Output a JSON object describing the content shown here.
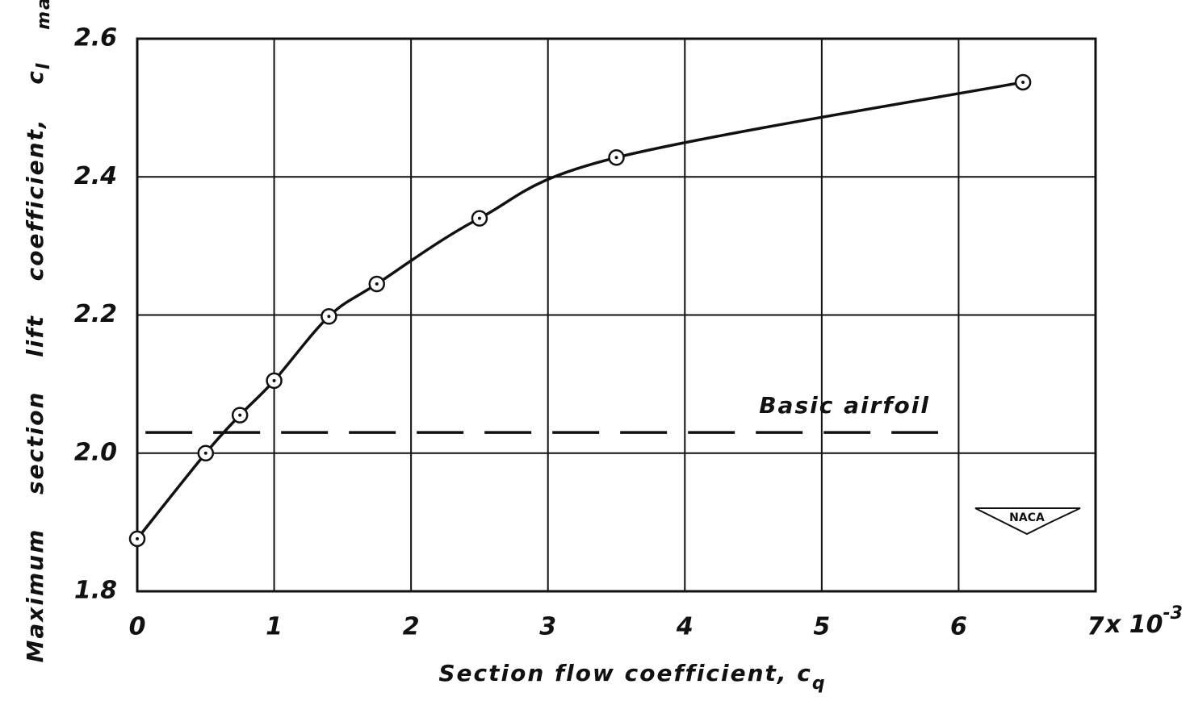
{
  "chart_data": {
    "type": "line",
    "x_label": "Section flow coefficient, c",
    "x_label_sub": "q",
    "y_label": "Maximum section lift coefficient, c",
    "y_label_sub": "l max.",
    "x_multiplier": "x 10",
    "x_multiplier_exp": "-3",
    "x": [
      0,
      0.5,
      0.75,
      1.0,
      1.4,
      1.75,
      2.5,
      3.5,
      6.47
    ],
    "values": [
      1.876,
      2.0,
      2.055,
      2.105,
      2.198,
      2.245,
      2.34,
      2.428,
      2.537
    ],
    "color": "#111111",
    "reference_line": {
      "label": "Basic airfoil",
      "value": 2.03,
      "xrange": [
        0.06,
        5.85
      ]
    },
    "logo": "NACA",
    "xlim": [
      0,
      7
    ],
    "xticks": [
      0,
      1,
      2,
      3,
      4,
      5,
      6,
      7
    ],
    "ylim": [
      1.8,
      2.6
    ],
    "yticks": [
      1.8,
      {
        "value": 2,
        "label": "2.0"
      },
      2.2,
      2.4,
      2.6
    ],
    "grid": true
  }
}
